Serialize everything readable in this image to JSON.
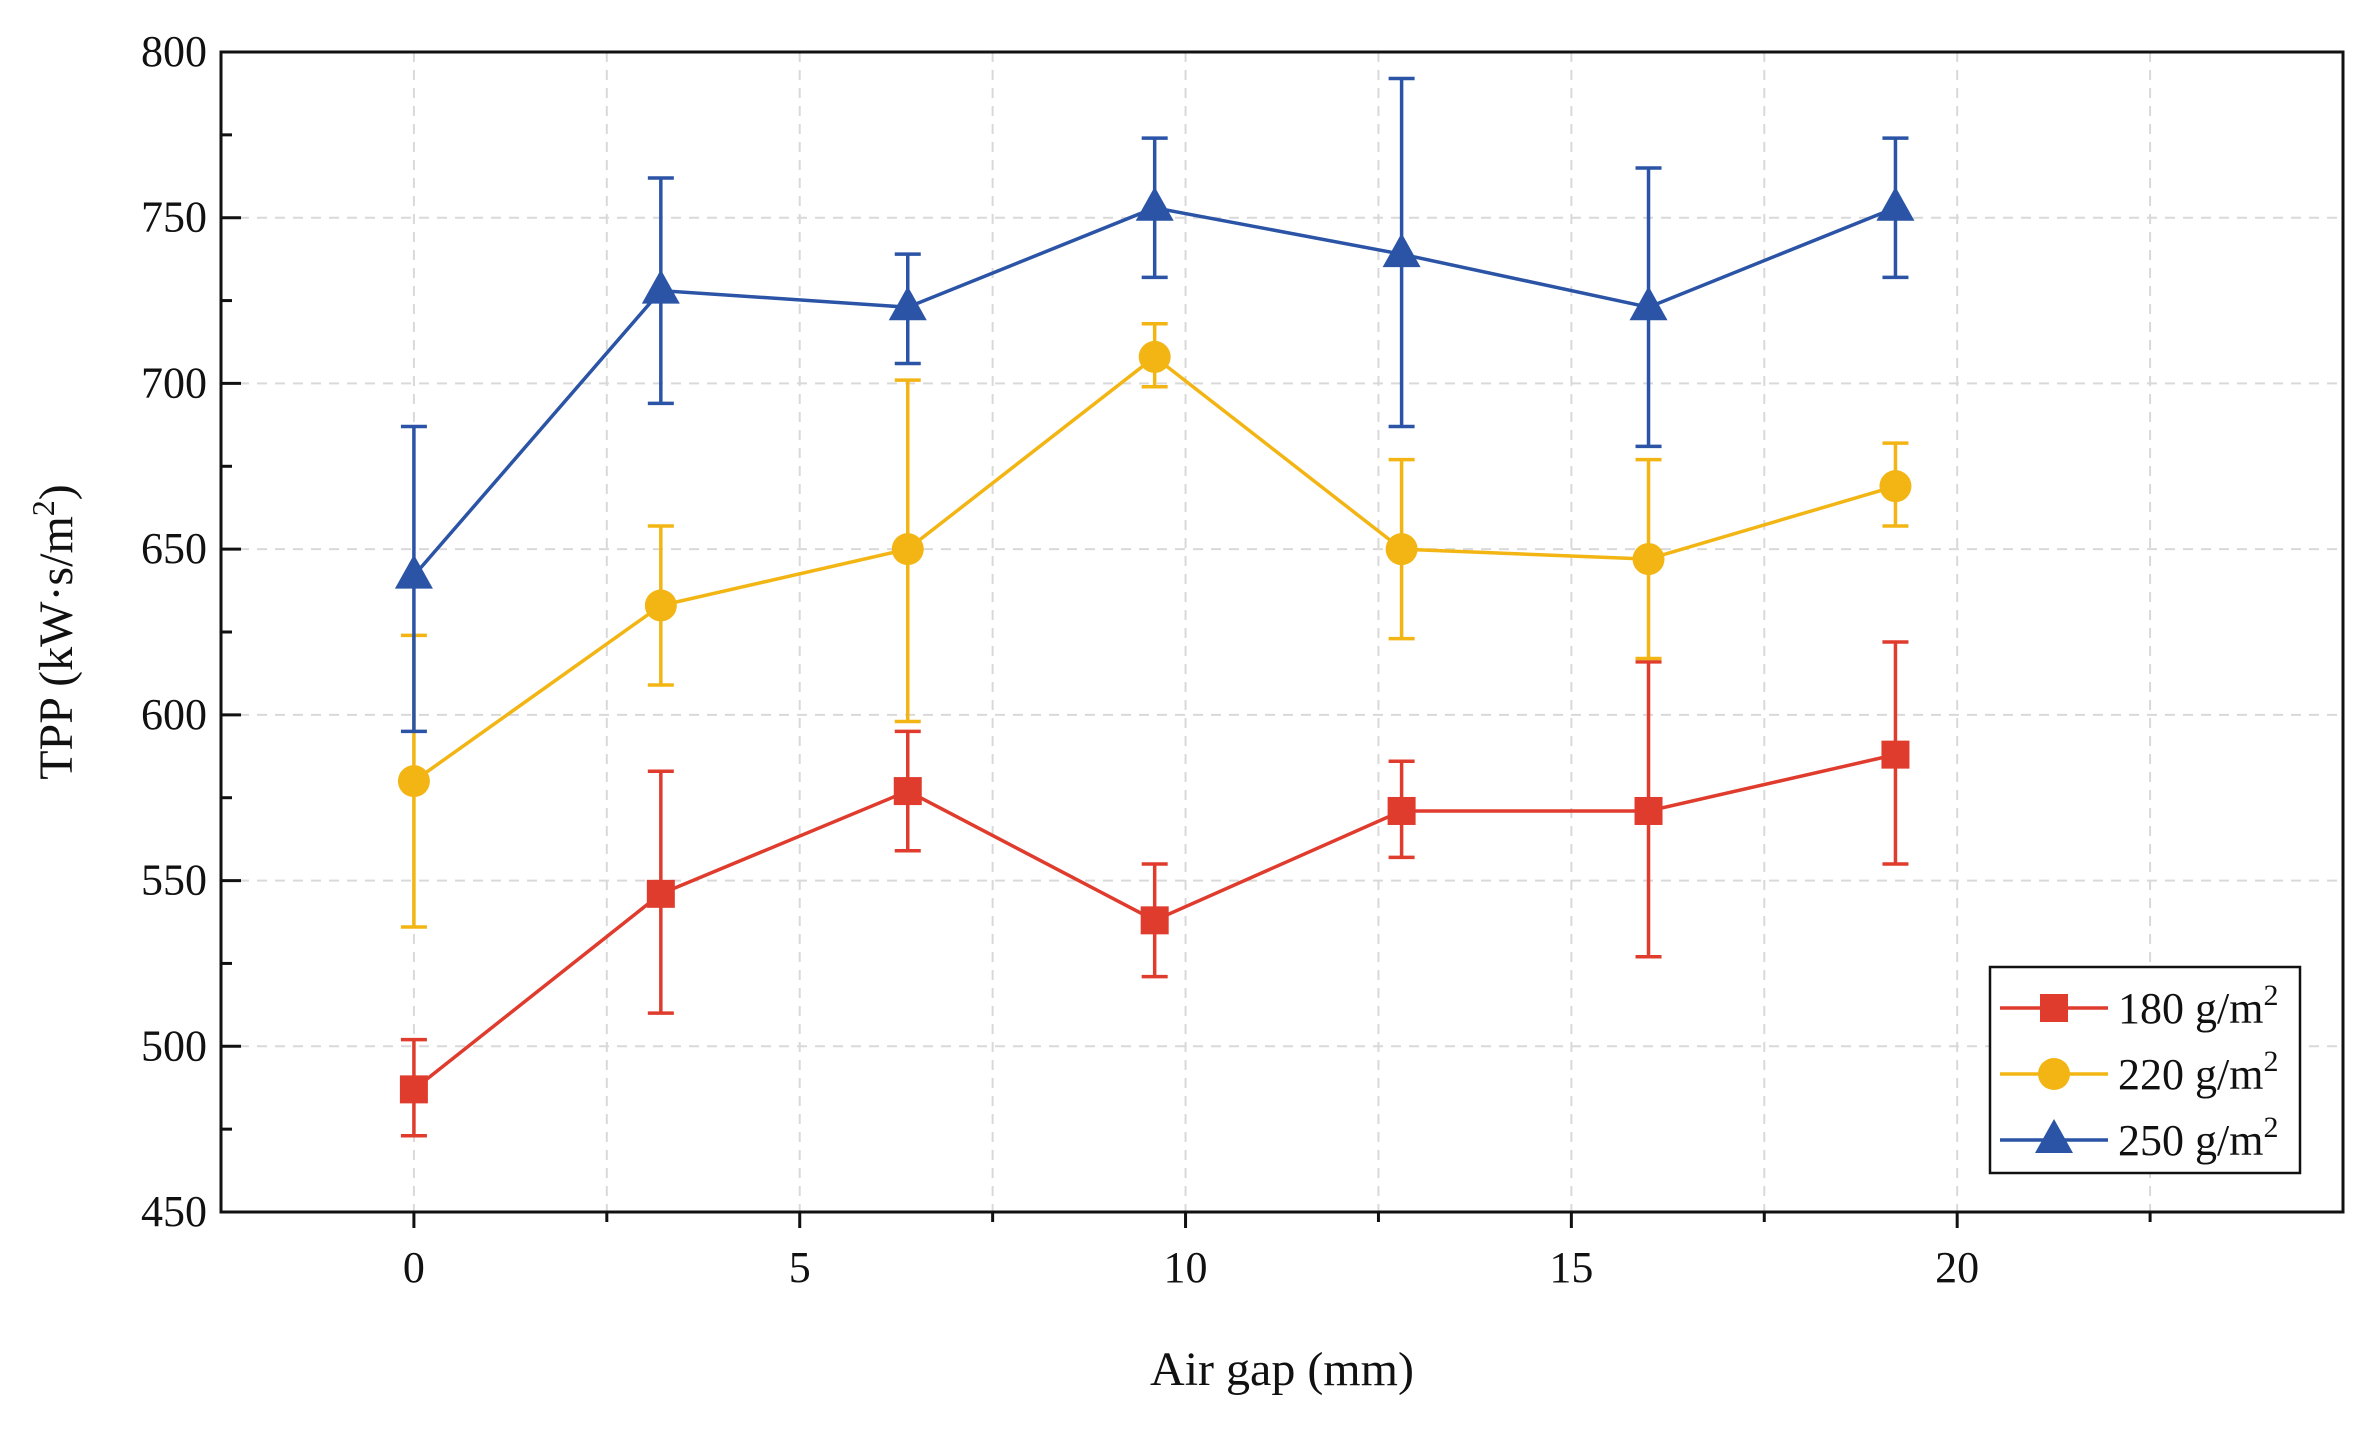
{
  "chart_data": {
    "type": "line",
    "title": "",
    "xlabel": "Air gap (mm)",
    "ylabel": {
      "main": "TPP  (kW·s/m",
      "sup": "2",
      "end": ")"
    },
    "xlim": [
      -2.5,
      25
    ],
    "ylim": [
      450,
      800
    ],
    "xticks": [
      0,
      5,
      10,
      15,
      20
    ],
    "xtick_labels": [
      "0",
      "5",
      "10",
      "15",
      "20"
    ],
    "yticks": [
      450,
      500,
      550,
      600,
      650,
      700,
      750,
      800
    ],
    "ytick_labels": [
      "450",
      "500",
      "550",
      "600",
      "650",
      "700",
      "750",
      "800"
    ],
    "grid": true,
    "legend_position": "bottom-right",
    "x": [
      0,
      3.2,
      6.4,
      9.6,
      12.8,
      16,
      19.2
    ],
    "series": [
      {
        "name": "180 g/m2",
        "label_main": "180 g/m",
        "label_sup": "2",
        "color": "#e03c2e",
        "marker": "square",
        "values": [
          487,
          546,
          577,
          538,
          571,
          571,
          588
        ],
        "err_low": [
          473,
          510,
          559,
          521,
          557,
          527,
          555
        ],
        "err_high": [
          502,
          583,
          595,
          555,
          586,
          616,
          622
        ]
      },
      {
        "name": "220 g/m2",
        "label_main": "220 g/m",
        "label_sup": "2",
        "color": "#f2b514",
        "marker": "circle",
        "values": [
          580,
          633,
          650,
          708,
          650,
          647,
          669
        ],
        "err_low": [
          536,
          609,
          598,
          699,
          623,
          617,
          657
        ],
        "err_high": [
          624,
          657,
          701,
          718,
          677,
          677,
          682
        ]
      },
      {
        "name": "250 g/m2",
        "label_main": "250 g/m",
        "label_sup": "2",
        "color": "#2b54a6",
        "marker": "triangle",
        "values": [
          642,
          728,
          723,
          753,
          739,
          723,
          753
        ],
        "err_low": [
          595,
          694,
          706,
          732,
          687,
          681,
          732
        ],
        "err_high": [
          687,
          762,
          739,
          774,
          792,
          765,
          774
        ]
      }
    ]
  }
}
